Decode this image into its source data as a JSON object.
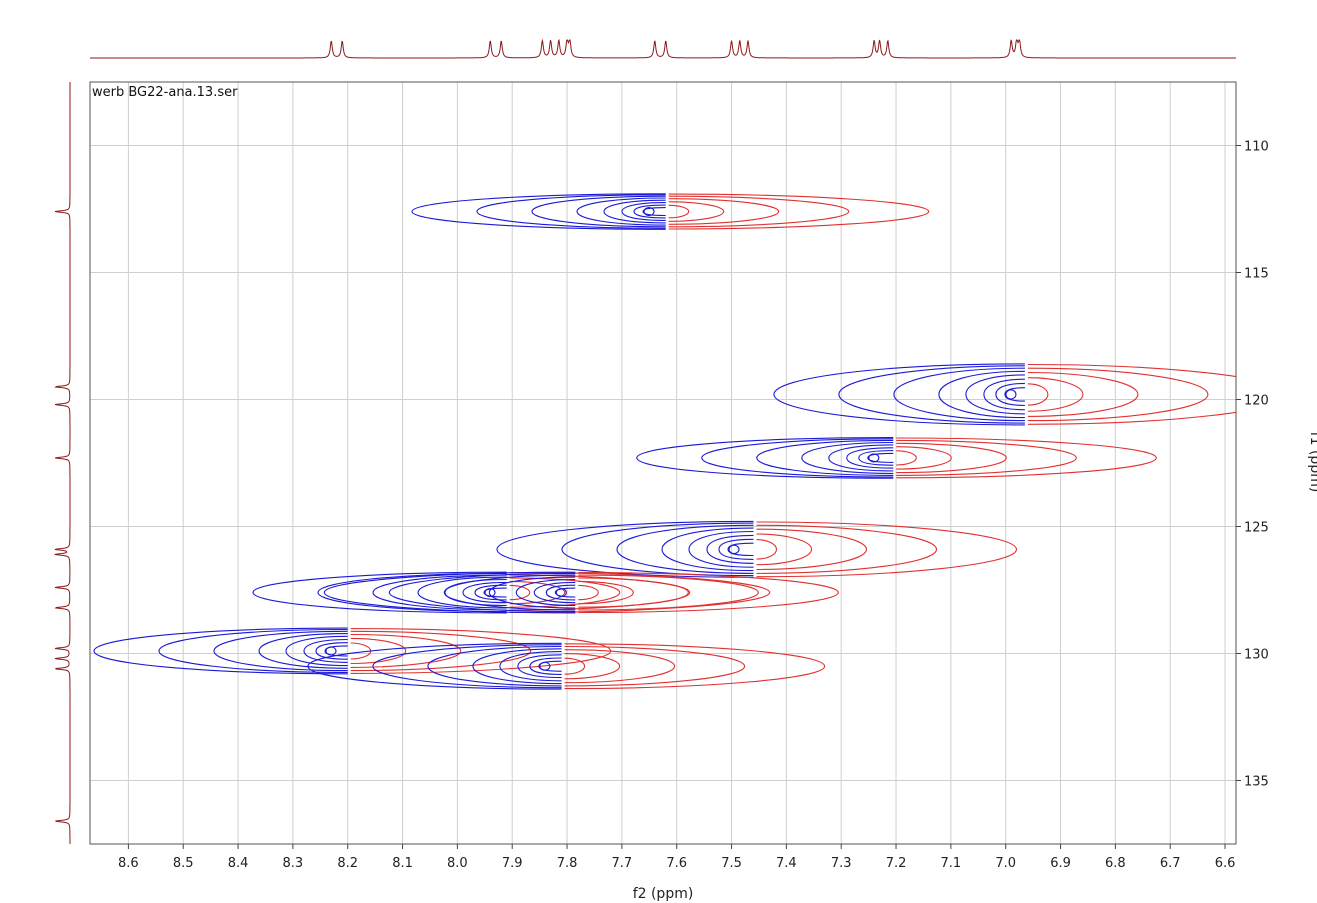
{
  "chart_data": {
    "type": "contour-2d-nmr",
    "title": "werb BG22-ana.13.ser",
    "xlabel": "f2 (ppm)",
    "ylabel": "f1 (ppm)",
    "xlim": [
      8.67,
      6.58
    ],
    "ylim": [
      107.5,
      137.5
    ],
    "x_ticks": [
      8.6,
      8.5,
      8.4,
      8.3,
      8.2,
      8.1,
      8.0,
      7.9,
      7.8,
      7.7,
      7.6,
      7.5,
      7.4,
      7.3,
      7.2,
      7.1,
      7.0,
      6.9,
      6.8,
      6.7,
      6.6
    ],
    "x_tick_labels": [
      "8.6",
      "8.5",
      "8.4",
      "8.3",
      "8.2",
      "8.1",
      "8.0",
      "7.9",
      "7.8",
      "7.7",
      "7.6",
      "7.5",
      "7.4",
      "7.3",
      "7.2",
      "7.1",
      "7.0",
      "6.9",
      "6.8",
      "6.7",
      "6.6"
    ],
    "y_ticks": [
      110,
      115,
      120,
      125,
      130,
      135
    ],
    "y_tick_labels": [
      "110",
      "115",
      "120",
      "125",
      "130",
      "135"
    ],
    "grid": true,
    "colors": {
      "positive": "#1a1ad6",
      "negative": "#e03030",
      "projection": "#8b1a1a",
      "grid": "#cfcfcf"
    },
    "cross_peaks": [
      {
        "f2": 7.645,
        "f1": 112.6,
        "phase_edge": 7.62,
        "h": 0.7
      },
      {
        "f2": 6.985,
        "f1": 119.8,
        "phase_edge": 6.965,
        "h": 1.2
      },
      {
        "f2": 7.235,
        "f1": 122.3,
        "phase_edge": 7.205,
        "h": 0.8
      },
      {
        "f2": 7.49,
        "f1": 125.9,
        "phase_edge": 7.46,
        "h": 1.1
      },
      {
        "f2": 7.935,
        "f1": 127.6,
        "phase_edge": 7.91,
        "h": 0.8
      },
      {
        "f2": 7.805,
        "f1": 127.6,
        "phase_edge": 7.785,
        "h": 0.8
      },
      {
        "f2": 8.225,
        "f1": 129.9,
        "phase_edge": 8.2,
        "h": 0.9
      },
      {
        "f2": 7.835,
        "f1": 130.5,
        "phase_edge": 7.81,
        "h": 0.9
      }
    ],
    "f2_projection_peaks": [
      8.23,
      8.21,
      7.94,
      7.92,
      7.845,
      7.83,
      7.815,
      7.8,
      7.795,
      7.64,
      7.62,
      7.5,
      7.485,
      7.47,
      7.24,
      7.23,
      7.215,
      6.99,
      6.98,
      6.975
    ],
    "f1_projection_peaks": [
      112.6,
      119.5,
      120.2,
      122.3,
      125.9,
      126.1,
      127.4,
      128.2,
      129.8,
      130.2,
      130.6,
      136.6
    ]
  }
}
